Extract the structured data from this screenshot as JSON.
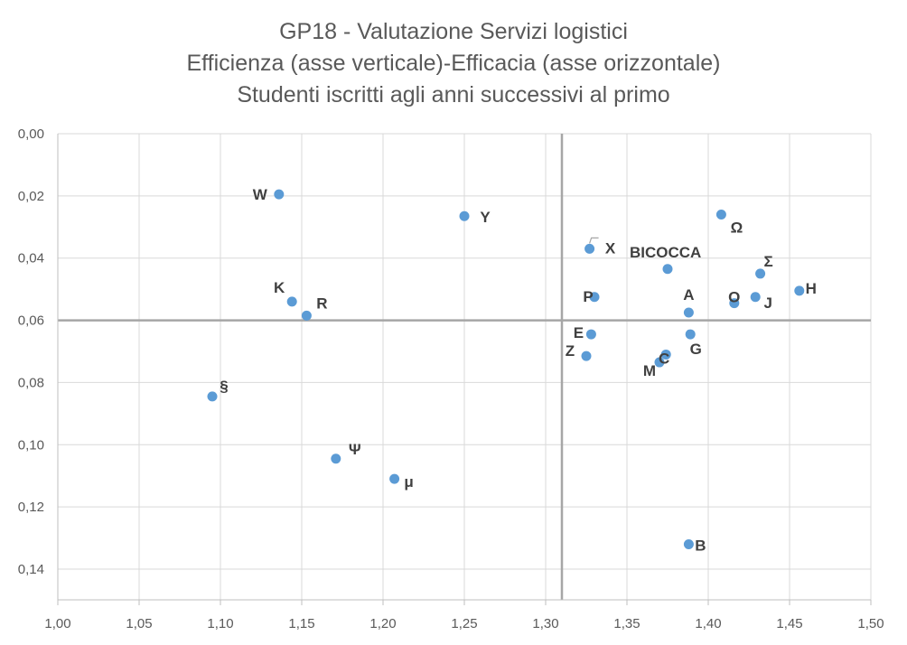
{
  "title_lines": [
    "GP18 - Valutazione Servizi logistici",
    "Efficienza (asse verticale)-Efficacia (asse orizzontale)",
    "Studenti iscritti agli anni successivi al primo"
  ],
  "chart_data": {
    "type": "scatter",
    "title": "GP18 - Valutazione Servizi logistici / Efficienza (asse verticale)-Efficacia (asse orizzontale) / Studenti iscritti agli anni successivi al primo",
    "xlim": [
      1.0,
      1.5
    ],
    "ylim": [
      0.0,
      0.15
    ],
    "y_reversed": true,
    "x_ticks": [
      "1,00",
      "1,05",
      "1,10",
      "1,15",
      "1,20",
      "1,25",
      "1,30",
      "1,35",
      "1,40",
      "1,45",
      "1,50"
    ],
    "y_ticks": [
      "0,00",
      "0,02",
      "0,04",
      "0,06",
      "0,08",
      "0,10",
      "0,12",
      "0,14"
    ],
    "reference_lines": {
      "x": 1.31,
      "y": 0.06
    },
    "grid": true,
    "marker_color": "#5B9BD5",
    "points": [
      {
        "label": "W",
        "x": 1.136,
        "y": 0.0195
      },
      {
        "label": "Y",
        "x": 1.25,
        "y": 0.0265
      },
      {
        "label": "X",
        "x": 1.327,
        "y": 0.037
      },
      {
        "label": "Ω",
        "x": 1.408,
        "y": 0.026
      },
      {
        "label": "BICOCCA",
        "x": 1.375,
        "y": 0.0435
      },
      {
        "label": "Σ",
        "x": 1.432,
        "y": 0.045
      },
      {
        "label": "H",
        "x": 1.456,
        "y": 0.0505
      },
      {
        "label": "K",
        "x": 1.144,
        "y": 0.054
      },
      {
        "label": "R",
        "x": 1.153,
        "y": 0.0585
      },
      {
        "label": "P",
        "x": 1.33,
        "y": 0.0525
      },
      {
        "label": "A",
        "x": 1.388,
        "y": 0.0575
      },
      {
        "label": "O",
        "x": 1.416,
        "y": 0.0545
      },
      {
        "label": "J",
        "x": 1.429,
        "y": 0.0525
      },
      {
        "label": "E",
        "x": 1.328,
        "y": 0.0645
      },
      {
        "label": "Z",
        "x": 1.325,
        "y": 0.0715
      },
      {
        "label": "C",
        "x": 1.374,
        "y": 0.071
      },
      {
        "label": "G",
        "x": 1.389,
        "y": 0.0645
      },
      {
        "label": "M",
        "x": 1.37,
        "y": 0.0735
      },
      {
        "label": "§",
        "x": 1.095,
        "y": 0.0845
      },
      {
        "label": "Ψ",
        "x": 1.171,
        "y": 0.1045
      },
      {
        "label": "μ",
        "x": 1.207,
        "y": 0.111
      },
      {
        "label": "B",
        "x": 1.388,
        "y": 0.132
      }
    ]
  }
}
